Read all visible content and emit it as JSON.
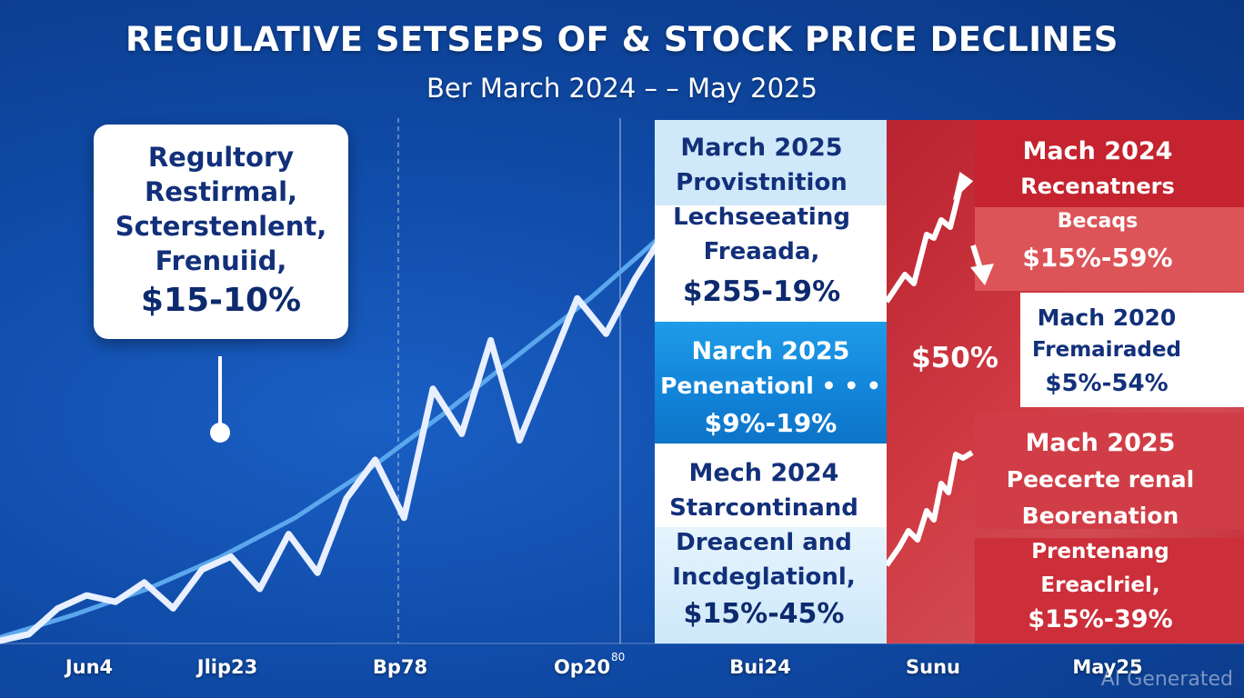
{
  "chart_data": {
    "type": "line",
    "title": "REGULATIVE SETSEPS OF & STOCK PRICE DECLINES",
    "subtitle": "Ber March 2024 – – May 2025",
    "x_tick_labels": [
      "Jun4",
      "Jlip23",
      "Bp78",
      "Op20",
      "Bui24",
      "Sunu",
      "May25"
    ],
    "tick_annotation": "80",
    "series": [
      {
        "name": "price",
        "values": [
          2,
          4,
          12,
          16,
          14,
          20,
          12,
          24,
          28,
          18,
          35,
          23,
          46,
          58,
          40,
          80,
          66,
          95,
          64,
          86,
          108,
          97,
          114,
          128
        ]
      },
      {
        "name": "trend",
        "values": [
          3,
          10,
          18,
          28,
          40,
          55,
          72,
          90,
          108,
          128
        ]
      }
    ]
  },
  "callout": {
    "lines": [
      "Regultory",
      "Restirmal,",
      "Scterstenlent,",
      "Frenuiid,"
    ],
    "value": "$15-10%"
  },
  "panels": {
    "blue": [
      {
        "lines": [
          "March 2025",
          "Provistnition",
          "Lechseeating",
          "Freaada,"
        ],
        "value": "$255-19%"
      },
      {
        "lines": [
          "Narch 2025",
          "Penenationl • • •"
        ],
        "value": "$9%-19%"
      },
      {
        "lines": [
          "Mech 2024",
          "Starcontinand",
          "Dreacenl and",
          "Incdeglationl,"
        ],
        "value": "$15%-45%"
      }
    ],
    "red": [
      {
        "lines": [
          "Mach 2024",
          "Recenatners",
          "Becaqs"
        ],
        "value": "$15%-59%"
      },
      {
        "lines": [
          "Mach 2020",
          "Fremairaded"
        ],
        "value": "$5%-54%"
      },
      {
        "value": "$50%"
      },
      {
        "lines": [
          "Mach 2025",
          "Peecerte renal",
          "Beorenation",
          "Prentenang",
          "Ereaclriel,"
        ],
        "value": "$15%-39%"
      }
    ]
  },
  "watermark": "AI Generated",
  "colors": {
    "bg": "#0f4aa6",
    "navy": "#12307a",
    "red": "#c8323d",
    "lightblue": "#cfe8fa",
    "midblue": "#1c8fe0"
  }
}
